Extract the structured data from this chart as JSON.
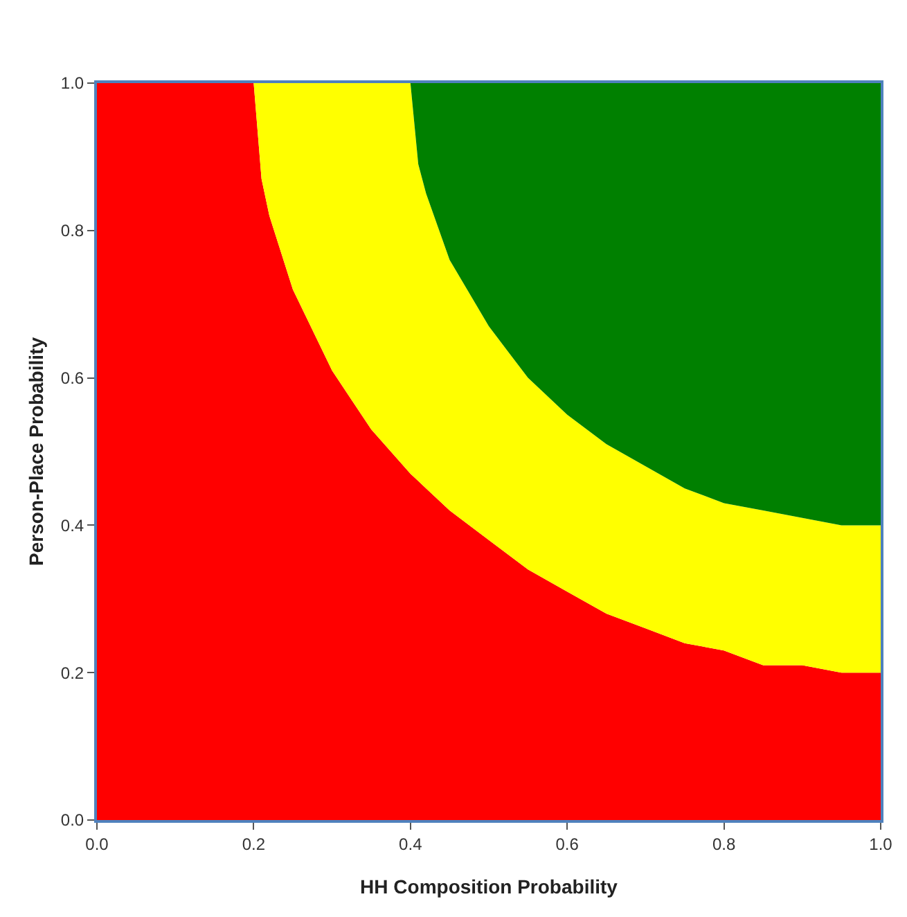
{
  "chart_data": {
    "type": "area",
    "stacked": true,
    "xlabel": "HH Composition Probability",
    "ylabel": "Person-Place Probability",
    "x": [
      0,
      0.2,
      0.21,
      0.22,
      0.25,
      0.3,
      0.35,
      0.4,
      0.41,
      0.42,
      0.45,
      0.5,
      0.55,
      0.6,
      0.65,
      0.7,
      0.75,
      0.8,
      0.85,
      0.9,
      0.95,
      1.0
    ],
    "series": [
      {
        "color": "#ff0000",
        "values": [
          1,
          1,
          0.87,
          0.82,
          0.72,
          0.61,
          0.53,
          0.47,
          0.46,
          0.45,
          0.42,
          0.38,
          0.34,
          0.31,
          0.28,
          0.26,
          0.24,
          0.23,
          0.21,
          0.21,
          0.2,
          0.2
        ]
      },
      {
        "color": "#ffff00",
        "values": [
          0,
          0,
          0.13,
          0.18,
          0.28,
          0.39,
          0.47,
          0.53,
          0.43,
          0.4,
          0.34,
          0.29,
          0.26,
          0.24,
          0.23,
          0.22,
          0.21,
          0.2,
          0.21,
          0.2,
          0.2,
          0.2
        ]
      },
      {
        "color": "#008000",
        "values": [
          0,
          0,
          0,
          0,
          0,
          0,
          0,
          0,
          0.11,
          0.15,
          0.24,
          0.33,
          0.4,
          0.45,
          0.49,
          0.52,
          0.55,
          0.57,
          0.58,
          0.59,
          0.6,
          0.6
        ]
      }
    ],
    "xlim": [
      0,
      1
    ],
    "ylim": [
      0,
      1
    ],
    "xticks": [
      {
        "value": 0,
        "label": "0.0"
      },
      {
        "value": 0.2,
        "label": "0.2"
      },
      {
        "value": 0.4,
        "label": "0.4"
      },
      {
        "value": 0.6,
        "label": "0.6"
      },
      {
        "value": 0.8,
        "label": "0.8"
      },
      {
        "value": 1,
        "label": "1.0"
      }
    ],
    "yticks": [
      {
        "value": 0,
        "label": "0.0"
      },
      {
        "value": 0.2,
        "label": "0.2"
      },
      {
        "value": 0.4,
        "label": "0.4"
      },
      {
        "value": 0.6,
        "label": "0.6"
      },
      {
        "value": 0.8,
        "label": "0.8"
      },
      {
        "value": 1,
        "label": "1.0"
      }
    ]
  }
}
